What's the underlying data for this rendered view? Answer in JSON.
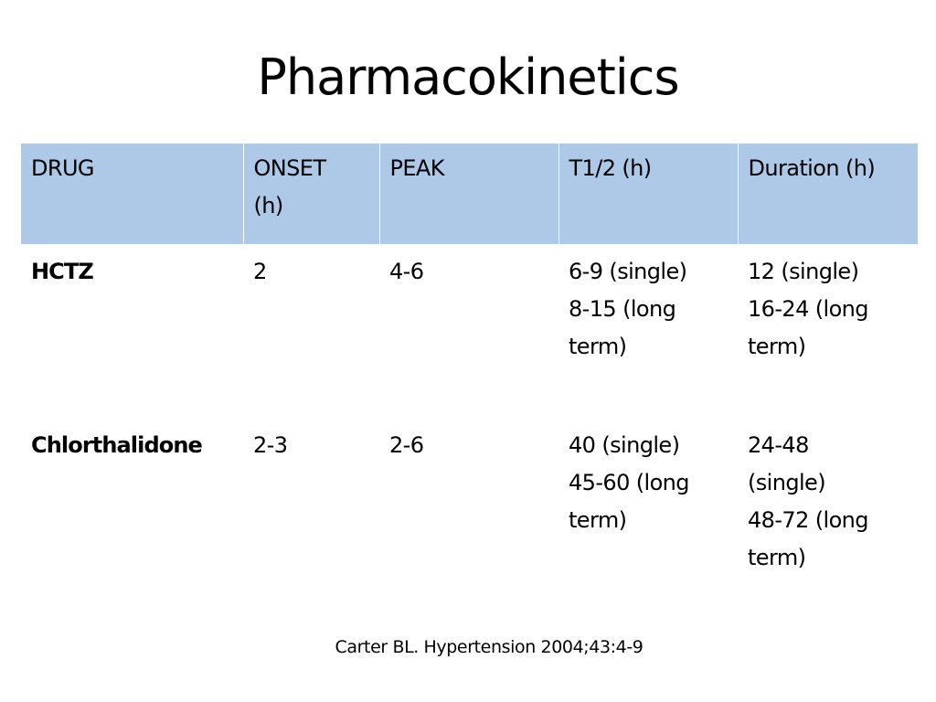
{
  "slide": {
    "title": "Pharmacokinetics",
    "citation": "Carter BL.  Hypertension 2004;43:4-9"
  },
  "table": {
    "headers": [
      {
        "line1": "DRUG",
        "line2": ""
      },
      {
        "line1": "ONSET",
        "line2": "(h)"
      },
      {
        "line1": "PEAK",
        "line2": ""
      },
      {
        "line1": "T1/2 (h)",
        "line2": ""
      },
      {
        "line1": "Duration (h)",
        "line2": ""
      }
    ],
    "rows": [
      {
        "drug": "HCTZ",
        "onset": "2",
        "peak": "4-6",
        "half_life": [
          "6-9 (single)",
          "8-15 (long",
          "term)"
        ],
        "duration": [
          "12 (single)",
          "16-24 (long",
          "term)"
        ]
      },
      {
        "drug": "Chlorthalidone",
        "onset": "2-3",
        "peak": "2-6",
        "half_life": [
          "40 (single)",
          "45-60 (long",
          "term)"
        ],
        "duration": [
          "24-48",
          "(single)",
          "48-72 (long",
          "term)"
        ]
      }
    ],
    "header_color": "#aec8e8"
  }
}
